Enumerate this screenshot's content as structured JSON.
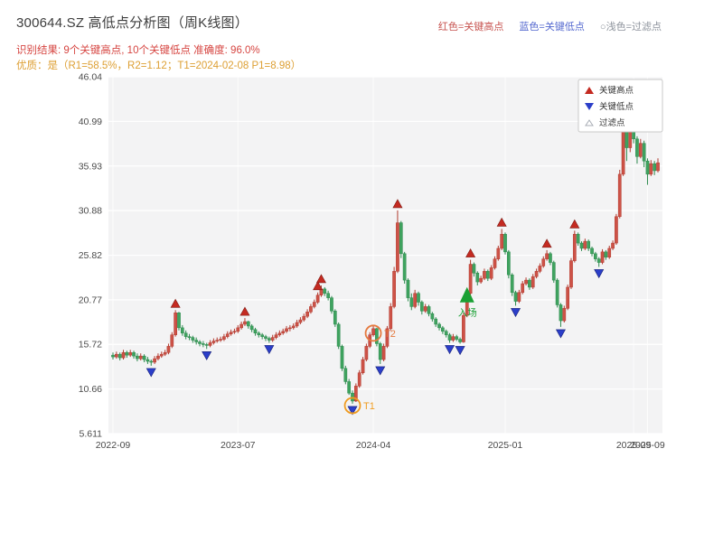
{
  "header": {
    "title": "300644.SZ 高低点分析图（周K线图）",
    "legend_top": [
      {
        "label": "红色=关键高点",
        "color": "#c75450"
      },
      {
        "label": "蓝色=关键低点",
        "color": "#5468cf"
      },
      {
        "label": "○浅色=过滤点",
        "color": "#8d939c"
      }
    ],
    "result_line": "识别结果: 9个关键高点, 10个关键低点  准确度: 96.0%",
    "quality_line": "优质：是（R1=58.5%，R2=1.12；T1=2024-02-08 P1=8.98）"
  },
  "legend_box": {
    "items": [
      {
        "label": "关键高点",
        "marker": "up-triangle-icon",
        "color": "#c42a21"
      },
      {
        "label": "关键低点",
        "marker": "down-triangle-icon",
        "color": "#2b3ec9"
      },
      {
        "label": "过滤点",
        "marker": "open-triangle-icon",
        "color": "#a8adb5"
      }
    ]
  },
  "chart_data": {
    "type": "candlestick",
    "title": "300644.SZ weekly K-line with key high/low detection",
    "ylim": [
      5.611,
      46.04
    ],
    "y_ticks": [
      46.04,
      40.99,
      35.93,
      30.88,
      25.82,
      20.77,
      15.72,
      10.66,
      5.611
    ],
    "x_ticks": [
      {
        "index": 0,
        "label": "2022-09"
      },
      {
        "index": 36,
        "label": "2023-07"
      },
      {
        "index": 75,
        "label": "2024-04"
      },
      {
        "index": 113,
        "label": "2025-01"
      },
      {
        "index": 150,
        "label": "2025-09"
      },
      {
        "index": 154,
        "label": "2025-09"
      }
    ],
    "colors": {
      "up": "#cd5247",
      "up_stroke": "#b23a2f",
      "down": "#3fa35f",
      "down_stroke": "#2e8b4f",
      "key_high": "#c42a21",
      "key_low": "#2b3ec9",
      "entry": "#1aa034",
      "annotation": "#ef9b20",
      "annotation2": "#e5793e",
      "panel": "#f3f3f4",
      "grid": "#ffffff",
      "axis_text": "#4a4a4a"
    },
    "candles": [
      [
        14.5,
        14.8,
        14.0,
        14.3
      ],
      [
        14.3,
        14.9,
        14.1,
        14.6
      ],
      [
        14.6,
        14.8,
        13.9,
        14.2
      ],
      [
        14.2,
        15.1,
        14.0,
        14.8
      ],
      [
        14.8,
        15.0,
        14.2,
        14.5
      ],
      [
        14.5,
        15.1,
        14.3,
        14.8
      ],
      [
        14.8,
        15.0,
        14.1,
        14.4
      ],
      [
        14.4,
        14.7,
        13.8,
        14.1
      ],
      [
        14.1,
        14.7,
        13.9,
        14.4
      ],
      [
        14.4,
        14.6,
        13.7,
        14.0
      ],
      [
        14.0,
        14.3,
        13.5,
        13.8
      ],
      [
        13.8,
        14.0,
        13.3,
        13.7
      ],
      [
        13.7,
        14.4,
        13.5,
        14.1
      ],
      [
        14.1,
        14.7,
        13.9,
        14.4
      ],
      [
        14.4,
        14.9,
        14.2,
        14.6
      ],
      [
        14.6,
        15.1,
        14.4,
        14.8
      ],
      [
        14.8,
        15.8,
        14.6,
        15.5
      ],
      [
        15.5,
        17.1,
        15.3,
        16.8
      ],
      [
        16.8,
        19.6,
        16.6,
        19.3
      ],
      [
        19.3,
        19.4,
        17.3,
        17.6
      ],
      [
        17.6,
        17.9,
        16.7,
        17.0
      ],
      [
        17.0,
        17.3,
        16.3,
        16.6
      ],
      [
        16.6,
        16.9,
        16.2,
        16.5
      ],
      [
        16.5,
        16.7,
        15.9,
        16.2
      ],
      [
        16.2,
        16.5,
        15.7,
        16.0
      ],
      [
        16.0,
        16.2,
        15.5,
        15.8
      ],
      [
        15.8,
        16.1,
        15.4,
        15.7
      ],
      [
        15.7,
        15.9,
        15.2,
        15.6
      ],
      [
        15.6,
        16.2,
        15.4,
        15.9
      ],
      [
        15.9,
        16.4,
        15.7,
        16.1
      ],
      [
        16.1,
        16.5,
        15.9,
        16.2
      ],
      [
        16.2,
        16.6,
        16.0,
        16.3
      ],
      [
        16.3,
        16.9,
        16.1,
        16.6
      ],
      [
        16.6,
        17.2,
        16.4,
        16.9
      ],
      [
        16.9,
        17.4,
        16.7,
        17.1
      ],
      [
        17.1,
        17.5,
        16.9,
        17.2
      ],
      [
        17.2,
        17.9,
        17.0,
        17.6
      ],
      [
        17.6,
        18.3,
        17.4,
        18.0
      ],
      [
        18.0,
        18.7,
        17.8,
        18.3
      ],
      [
        18.3,
        18.4,
        17.5,
        17.8
      ],
      [
        17.8,
        18.0,
        17.1,
        17.4
      ],
      [
        17.4,
        17.6,
        16.7,
        17.0
      ],
      [
        17.0,
        17.2,
        16.5,
        16.8
      ],
      [
        16.8,
        17.0,
        16.3,
        16.6
      ],
      [
        16.6,
        16.8,
        16.1,
        16.4
      ],
      [
        16.4,
        16.6,
        15.9,
        16.2
      ],
      [
        16.2,
        16.8,
        16.0,
        16.5
      ],
      [
        16.5,
        17.1,
        16.3,
        16.8
      ],
      [
        16.8,
        17.3,
        16.6,
        17.0
      ],
      [
        17.0,
        17.5,
        16.8,
        17.2
      ],
      [
        17.2,
        17.8,
        17.0,
        17.5
      ],
      [
        17.5,
        17.9,
        17.2,
        17.6
      ],
      [
        17.6,
        18.1,
        17.4,
        17.8
      ],
      [
        17.8,
        18.5,
        17.6,
        18.2
      ],
      [
        18.2,
        18.8,
        18.0,
        18.5
      ],
      [
        18.5,
        19.2,
        18.3,
        18.9
      ],
      [
        18.9,
        19.7,
        18.7,
        19.4
      ],
      [
        19.4,
        20.3,
        19.2,
        20.0
      ],
      [
        20.0,
        20.8,
        19.8,
        20.5
      ],
      [
        20.5,
        21.6,
        20.3,
        21.3
      ],
      [
        21.3,
        22.4,
        21.1,
        22.0
      ],
      [
        22.0,
        22.2,
        21.2,
        21.5
      ],
      [
        21.5,
        21.8,
        20.7,
        21.0
      ],
      [
        21.0,
        21.2,
        19.2,
        19.5
      ],
      [
        19.5,
        19.7,
        17.7,
        18.0
      ],
      [
        18.0,
        18.2,
        15.2,
        15.5
      ],
      [
        15.5,
        15.7,
        12.7,
        13.0
      ],
      [
        13.0,
        13.3,
        11.2,
        11.5
      ],
      [
        11.5,
        11.8,
        10.0,
        10.2
      ],
      [
        10.2,
        10.5,
        9.0,
        9.3
      ],
      [
        9.3,
        11.3,
        9.2,
        11.0
      ],
      [
        11.0,
        12.8,
        10.8,
        12.5
      ],
      [
        12.5,
        14.3,
        12.3,
        14.0
      ],
      [
        14.0,
        15.8,
        13.8,
        15.5
      ],
      [
        15.5,
        17.1,
        15.3,
        16.8
      ],
      [
        16.8,
        17.9,
        16.6,
        17.5
      ],
      [
        17.5,
        17.6,
        15.5,
        15.8
      ],
      [
        15.8,
        16.0,
        13.5,
        14.0
      ],
      [
        14.0,
        15.8,
        13.8,
        15.5
      ],
      [
        15.5,
        17.8,
        15.3,
        17.5
      ],
      [
        17.5,
        20.4,
        17.3,
        20.0
      ],
      [
        20.0,
        24.5,
        19.8,
        24.0
      ],
      [
        24.0,
        30.9,
        23.8,
        29.5
      ],
      [
        29.5,
        29.7,
        25.5,
        26.0
      ],
      [
        26.0,
        26.2,
        22.6,
        23.0
      ],
      [
        23.0,
        23.2,
        20.6,
        21.0
      ],
      [
        21.0,
        21.5,
        19.6,
        20.0
      ],
      [
        20.0,
        21.9,
        19.8,
        21.5
      ],
      [
        21.5,
        21.7,
        20.1,
        20.5
      ],
      [
        20.5,
        20.7,
        19.1,
        19.5
      ],
      [
        19.5,
        20.3,
        19.3,
        20.0
      ],
      [
        20.0,
        20.2,
        18.9,
        19.2
      ],
      [
        19.2,
        19.4,
        18.3,
        18.6
      ],
      [
        18.6,
        18.8,
        17.7,
        18.0
      ],
      [
        18.0,
        18.2,
        17.3,
        17.6
      ],
      [
        17.6,
        17.8,
        16.9,
        17.2
      ],
      [
        17.2,
        17.4,
        16.5,
        16.8
      ],
      [
        16.8,
        17.0,
        15.9,
        16.2
      ],
      [
        16.2,
        16.9,
        16.0,
        16.6
      ],
      [
        16.6,
        16.8,
        16.1,
        16.3
      ],
      [
        16.3,
        16.5,
        15.8,
        16.0
      ],
      [
        16.0,
        19.3,
        15.9,
        19.0
      ],
      [
        19.0,
        21.9,
        18.8,
        21.5
      ],
      [
        21.5,
        25.3,
        21.3,
        24.8
      ],
      [
        24.8,
        25.0,
        23.4,
        23.8
      ],
      [
        23.8,
        24.0,
        22.4,
        22.8
      ],
      [
        22.8,
        23.5,
        22.6,
        23.2
      ],
      [
        23.2,
        24.3,
        23.0,
        24.0
      ],
      [
        24.0,
        24.2,
        22.9,
        23.2
      ],
      [
        23.2,
        24.7,
        23.0,
        24.4
      ],
      [
        24.4,
        25.7,
        24.2,
        25.4
      ],
      [
        25.4,
        26.9,
        25.2,
        26.6
      ],
      [
        26.6,
        28.8,
        26.4,
        28.2
      ],
      [
        28.2,
        28.4,
        25.9,
        26.2
      ],
      [
        26.2,
        26.4,
        23.2,
        23.6
      ],
      [
        23.6,
        23.8,
        21.2,
        21.6
      ],
      [
        21.6,
        21.8,
        20.1,
        20.6
      ],
      [
        20.6,
        21.9,
        20.4,
        21.6
      ],
      [
        21.6,
        22.9,
        21.4,
        22.6
      ],
      [
        22.6,
        23.3,
        22.4,
        23.0
      ],
      [
        23.0,
        23.2,
        21.9,
        22.2
      ],
      [
        22.2,
        23.7,
        22.0,
        23.4
      ],
      [
        23.4,
        24.3,
        23.2,
        24.0
      ],
      [
        24.0,
        24.9,
        23.8,
        24.6
      ],
      [
        24.6,
        25.7,
        24.4,
        25.4
      ],
      [
        25.4,
        26.4,
        25.2,
        26.0
      ],
      [
        26.0,
        26.2,
        24.7,
        25.0
      ],
      [
        25.0,
        25.2,
        22.7,
        23.0
      ],
      [
        23.0,
        23.2,
        19.9,
        20.2
      ],
      [
        20.2,
        20.4,
        17.7,
        18.4
      ],
      [
        18.4,
        20.1,
        18.2,
        19.8
      ],
      [
        19.8,
        22.5,
        19.6,
        22.2
      ],
      [
        22.2,
        25.5,
        22.0,
        25.2
      ],
      [
        25.2,
        28.6,
        25.0,
        28.2
      ],
      [
        28.2,
        28.4,
        26.9,
        27.2
      ],
      [
        27.2,
        27.4,
        26.3,
        26.6
      ],
      [
        26.6,
        27.7,
        26.4,
        27.4
      ],
      [
        27.4,
        27.6,
        26.3,
        26.6
      ],
      [
        26.6,
        26.8,
        25.7,
        26.0
      ],
      [
        26.0,
        26.2,
        25.1,
        25.4
      ],
      [
        25.4,
        25.6,
        24.5,
        25.0
      ],
      [
        25.0,
        26.5,
        24.8,
        26.2
      ],
      [
        26.2,
        26.4,
        25.3,
        25.6
      ],
      [
        25.6,
        26.9,
        25.4,
        26.6
      ],
      [
        26.6,
        27.5,
        26.4,
        27.2
      ],
      [
        27.2,
        30.5,
        27.0,
        30.2
      ],
      [
        30.2,
        35.5,
        30.0,
        35.0
      ],
      [
        35.0,
        42.0,
        34.8,
        40.2
      ],
      [
        40.2,
        41.8,
        36.5,
        38.0
      ],
      [
        38.0,
        42.0,
        37.5,
        41.0
      ],
      [
        41.0,
        41.3,
        38.5,
        39.0
      ],
      [
        39.0,
        39.3,
        36.2,
        37.0
      ],
      [
        37.0,
        39.0,
        36.8,
        38.5
      ],
      [
        38.5,
        38.8,
        35.8,
        36.5
      ],
      [
        36.5,
        36.8,
        33.8,
        35.0
      ],
      [
        35.0,
        36.6,
        34.8,
        36.2
      ],
      [
        36.2,
        36.5,
        34.9,
        35.4
      ],
      [
        35.4,
        36.8,
        35.2,
        36.3
      ]
    ],
    "key_highs": [
      {
        "index": 18,
        "price": 19.6
      },
      {
        "index": 38,
        "price": 18.7
      },
      {
        "index": 59,
        "price": 21.6
      },
      {
        "index": 60,
        "price": 22.4
      },
      {
        "index": 82,
        "price": 30.9
      },
      {
        "index": 103,
        "price": 25.3
      },
      {
        "index": 112,
        "price": 28.8
      },
      {
        "index": 125,
        "price": 26.4
      },
      {
        "index": 133,
        "price": 28.6
      }
    ],
    "key_lows": [
      {
        "index": 11,
        "price": 13.3
      },
      {
        "index": 27,
        "price": 15.2
      },
      {
        "index": 45,
        "price": 15.9
      },
      {
        "index": 69,
        "price": 9.0
      },
      {
        "index": 77,
        "price": 13.5
      },
      {
        "index": 97,
        "price": 15.9
      },
      {
        "index": 100,
        "price": 15.8
      },
      {
        "index": 116,
        "price": 20.1
      },
      {
        "index": 129,
        "price": 17.7
      },
      {
        "index": 140,
        "price": 24.5
      }
    ],
    "annotations": [
      {
        "type": "circle",
        "index": 69,
        "price": 9.2,
        "label": "T1",
        "color": "#ef9b20"
      },
      {
        "type": "circle",
        "index": 75,
        "price": 17.4,
        "label": "T2",
        "color": "#e5793e"
      },
      {
        "type": "entry",
        "index": 102,
        "price": 21.2,
        "label": "入场",
        "color": "#1aa034"
      }
    ]
  }
}
